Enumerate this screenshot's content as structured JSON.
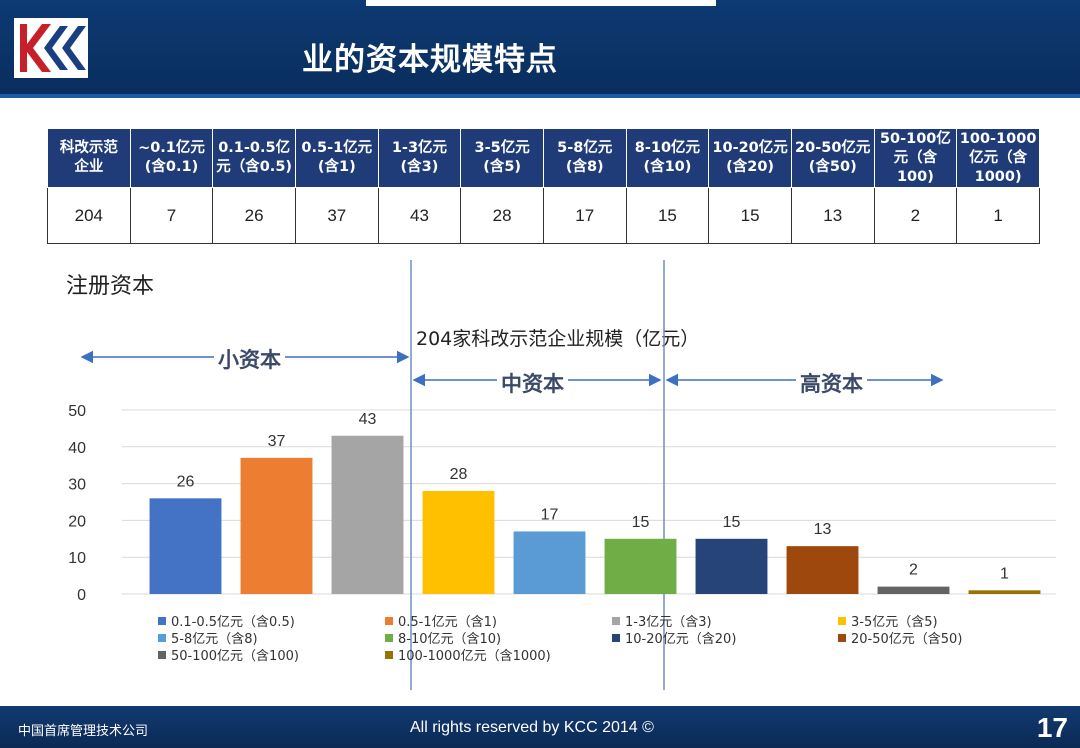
{
  "header": {
    "title": "业的资本规模特点"
  },
  "table": {
    "headers": [
      "科改示范\n企业",
      "~0.1亿元\n(含0.1)",
      "0.1-0.5亿\n元（含0.5)",
      "0.5-1亿元\n(含1)",
      "1-3亿元\n(含3)",
      "3-5亿元\n(含5)",
      "5-8亿元\n(含8)",
      "8-10亿元\n(含10)",
      "10-20亿元\n(含20)",
      "20-50亿元\n(含50)",
      "50-100亿\n元（含100)",
      "100-1000\n亿元（含\n1000)"
    ],
    "values": [
      "204",
      "7",
      "26",
      "37",
      "43",
      "28",
      "17",
      "15",
      "15",
      "13",
      "2",
      "1"
    ]
  },
  "axis_title": "注册资本",
  "bands": {
    "small": "小资本",
    "mid": "中资本",
    "high": "高资本"
  },
  "chart_data": {
    "type": "bar",
    "title": "204家科改示范企业规模（亿元）",
    "ylabel": "注册资本",
    "ylim": [
      0,
      50
    ],
    "yticks": [
      "0",
      "10",
      "20",
      "30",
      "40",
      "50"
    ],
    "categories": [
      "0.1-0.5亿元（含0.5)",
      "0.5-1亿元（含1)",
      "1-3亿元（含3)",
      "3-5亿元（含5)",
      "5-8亿元（含8)",
      "8-10亿元（含10)",
      "10-20亿元（含20)",
      "20-50亿元（含50)",
      "50-100亿元（含100)",
      "100-1000亿元（含1000)"
    ],
    "values": [
      26,
      37,
      43,
      28,
      17,
      15,
      15,
      13,
      2,
      1
    ],
    "colors": [
      "#4472c4",
      "#ed7d31",
      "#a5a5a5",
      "#ffc000",
      "#5b9bd5",
      "#70ad47",
      "#264478",
      "#9e480e",
      "#636363",
      "#997300"
    ],
    "legend_position": "bottom",
    "grid": true
  },
  "footer": {
    "left": "中国首席管理技术公司",
    "center": "All rights reserved by KCC 2014 ©",
    "page": "17"
  }
}
